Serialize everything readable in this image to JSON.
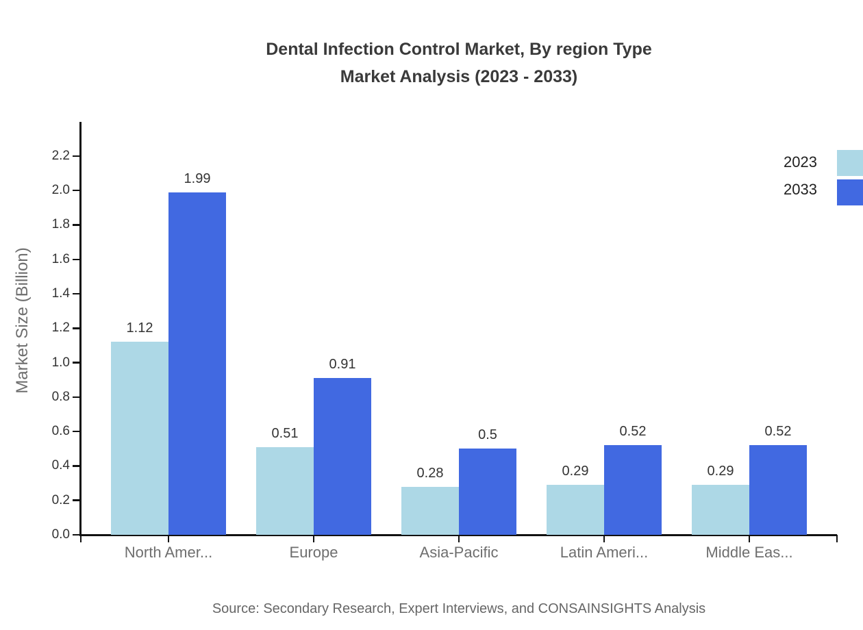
{
  "title": {
    "line1": "Dental Infection Control Market, By region Type",
    "line2": "Market Analysis (2023 - 2033)"
  },
  "source": "Source: Secondary Research, Expert Interviews, and CONSAINSIGHTS Analysis",
  "colors": {
    "series_2023": "#ADD8E6",
    "series_2033": "#4169E1",
    "axis": "#111111",
    "tick_label": "#333333",
    "category_label": "#6e6e6e",
    "title_text": "#3a3a3a",
    "source_text": "#666666"
  },
  "chart_data": {
    "type": "bar",
    "title": "Dental Infection Control Market, By region Type Market Analysis (2023 - 2033)",
    "xlabel": "",
    "ylabel": "Market Size (Billion)",
    "categories": [
      "North Amer...",
      "Europe",
      "Asia-Pacific",
      "Latin Ameri...",
      "Middle Eas..."
    ],
    "series": [
      {
        "name": "2023",
        "color": "#ADD8E6",
        "values": [
          1.12,
          0.51,
          0.28,
          0.29,
          0.29
        ],
        "labels": [
          "1.12",
          "0.51",
          "0.28",
          "0.29",
          "0.29"
        ]
      },
      {
        "name": "2033",
        "color": "#4169E1",
        "values": [
          1.99,
          0.91,
          0.5,
          0.52,
          0.52
        ],
        "labels": [
          "1.99",
          "0.91",
          "0.5",
          "0.52",
          "0.52"
        ]
      }
    ],
    "ylim": [
      0,
      2.4
    ],
    "yticks": [
      "0.0",
      "0.2",
      "0.4",
      "0.6",
      "0.8",
      "1.0",
      "1.2",
      "1.4",
      "1.6",
      "1.8",
      "2.0",
      "2.2"
    ],
    "grid": false,
    "legend_position": "upper right"
  }
}
